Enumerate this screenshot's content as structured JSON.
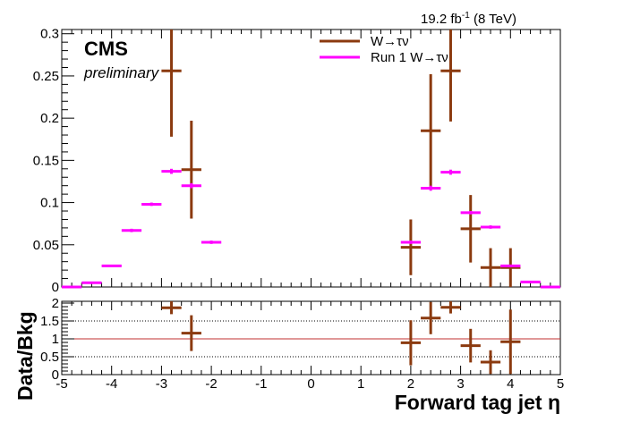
{
  "header": {
    "lumi": "19.2 fb",
    "lumi_exp": "-1",
    "lumi_suffix": " (8 TeV)",
    "experiment": "CMS",
    "status": "preliminary"
  },
  "chart_data": [
    {
      "type": "scatter",
      "xlabel": "Forward tag jet η",
      "ylabel": "",
      "xlim": [
        -5,
        5
      ],
      "ylim": [
        0,
        0.305
      ],
      "y_ticks": [
        "0",
        "0.05",
        "0.1",
        "0.15",
        "0.2",
        "0.25",
        "0.3"
      ],
      "y_tick_values": [
        0,
        0.05,
        0.1,
        0.15,
        0.2,
        0.25,
        0.3
      ],
      "legend": "top-right",
      "grid": false,
      "series": [
        {
          "name": "W→τν",
          "color": "#8b3a0f",
          "points": [
            {
              "x": -2.8,
              "y": 0.256,
              "xerr": 0.2,
              "yerr": 0.078
            },
            {
              "x": -2.4,
              "y": 0.139,
              "xerr": 0.2,
              "yerr": 0.058
            },
            {
              "x": 2.0,
              "y": 0.047,
              "xerr": 0.2,
              "yerr": 0.033
            },
            {
              "x": 2.4,
              "y": 0.185,
              "xerr": 0.2,
              "yerr": 0.067
            },
            {
              "x": 2.8,
              "y": 0.256,
              "xerr": 0.2,
              "yerr": 0.06
            },
            {
              "x": 3.2,
              "y": 0.069,
              "xerr": 0.2,
              "yerr": 0.04
            },
            {
              "x": 3.6,
              "y": 0.023,
              "xerr": 0.2,
              "yerr": 0.023
            },
            {
              "x": 4.0,
              "y": 0.023,
              "xerr": 0.2,
              "yerr": 0.023
            }
          ]
        },
        {
          "name": "Run 1 W→τν",
          "color": "#ff00ff",
          "points": [
            {
              "x": -4.8,
              "y": 0.0,
              "xerr": 0.2,
              "yerr": 0.001
            },
            {
              "x": -4.4,
              "y": 0.005,
              "xerr": 0.2,
              "yerr": 0.001
            },
            {
              "x": -4.0,
              "y": 0.025,
              "xerr": 0.2,
              "yerr": 0.001
            },
            {
              "x": -3.6,
              "y": 0.067,
              "xerr": 0.2,
              "yerr": 0.002
            },
            {
              "x": -3.2,
              "y": 0.098,
              "xerr": 0.2,
              "yerr": 0.002
            },
            {
              "x": -2.8,
              "y": 0.137,
              "xerr": 0.2,
              "yerr": 0.003
            },
            {
              "x": -2.4,
              "y": 0.12,
              "xerr": 0.2,
              "yerr": 0.003
            },
            {
              "x": -2.0,
              "y": 0.053,
              "xerr": 0.2,
              "yerr": 0.002
            },
            {
              "x": 2.0,
              "y": 0.053,
              "xerr": 0.2,
              "yerr": 0.002
            },
            {
              "x": 2.4,
              "y": 0.117,
              "xerr": 0.2,
              "yerr": 0.003
            },
            {
              "x": 2.8,
              "y": 0.136,
              "xerr": 0.2,
              "yerr": 0.003
            },
            {
              "x": 3.2,
              "y": 0.088,
              "xerr": 0.2,
              "yerr": 0.002
            },
            {
              "x": 3.6,
              "y": 0.071,
              "xerr": 0.2,
              "yerr": 0.002
            },
            {
              "x": 4.0,
              "y": 0.025,
              "xerr": 0.2,
              "yerr": 0.001
            },
            {
              "x": 4.4,
              "y": 0.006,
              "xerr": 0.2,
              "yerr": 0.001
            },
            {
              "x": 4.8,
              "y": 0.0,
              "xerr": 0.2,
              "yerr": 0.001
            }
          ]
        }
      ]
    },
    {
      "type": "scatter",
      "xlabel": "Forward tag jet η",
      "ylabel": "Data/Bkg",
      "xlim": [
        -5,
        5
      ],
      "ylim": [
        0,
        2.05
      ],
      "x_ticks": [
        "-5",
        "-4",
        "-3",
        "-2",
        "-1",
        "0",
        "1",
        "2",
        "3",
        "4",
        "5"
      ],
      "x_tick_values": [
        -5,
        -4,
        -3,
        -2,
        -1,
        0,
        1,
        2,
        3,
        4,
        5
      ],
      "y_ticks": [
        "0",
        "0.5",
        "1",
        "1.5",
        "2"
      ],
      "y_tick_values": [
        0,
        0.5,
        1,
        1.5,
        2
      ],
      "reference_line": {
        "y": 1.0,
        "color": "#c03030"
      },
      "dotted_lines": [
        0.5,
        1.5
      ],
      "series": [
        {
          "color": "#8b3a0f",
          "points": [
            {
              "x": -2.8,
              "y": 1.87,
              "xerr": 0.2,
              "yerr": 0.18
            },
            {
              "x": -2.4,
              "y": 1.16,
              "xerr": 0.2,
              "yerr": 0.5
            },
            {
              "x": 2.0,
              "y": 0.89,
              "xerr": 0.2,
              "yerr": 0.63
            },
            {
              "x": 2.4,
              "y": 1.58,
              "xerr": 0.2,
              "yerr": 0.45
            },
            {
              "x": 2.8,
              "y": 1.88,
              "xerr": 0.2,
              "yerr": 0.17
            },
            {
              "x": 3.2,
              "y": 0.81,
              "xerr": 0.2,
              "yerr": 0.47
            },
            {
              "x": 3.6,
              "y": 0.35,
              "xerr": 0.2,
              "yerr": 0.33
            },
            {
              "x": 4.0,
              "y": 0.92,
              "xerr": 0.2,
              "yerr": 0.9
            }
          ]
        }
      ]
    }
  ]
}
